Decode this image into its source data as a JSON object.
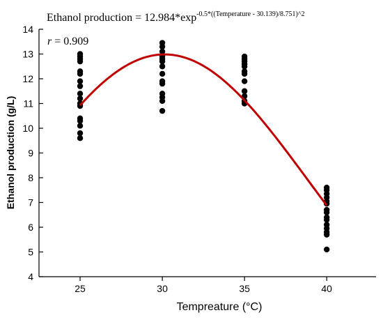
{
  "chart_data": {
    "type": "scatter",
    "equation": {
      "base": "Ethanol production = 12.984*exp",
      "exponent": "-0.5*((Temperature - 30.139)/8.751)^2"
    },
    "correlation": {
      "symbol": "r",
      "text": " = 0.909"
    },
    "xlabel": "Tempreature (°C)",
    "ylabel": "Ethanol production (g/L)",
    "xlim": [
      22.5,
      43
    ],
    "ylim": [
      4,
      14
    ],
    "xticks": [
      25,
      30,
      35,
      40
    ],
    "yticks": [
      4,
      5,
      6,
      7,
      8,
      9,
      10,
      11,
      12,
      13,
      14
    ],
    "fit_curve": {
      "a": 12.984,
      "x0": 30.139,
      "b": 8.751,
      "x_range": [
        25,
        40
      ],
      "color": "#c00000"
    },
    "points_color": "#000000",
    "points": [
      {
        "x": 25,
        "y": 13.0
      },
      {
        "x": 25,
        "y": 12.9
      },
      {
        "x": 25,
        "y": 12.8
      },
      {
        "x": 25,
        "y": 12.7
      },
      {
        "x": 25,
        "y": 12.3
      },
      {
        "x": 25,
        "y": 12.2
      },
      {
        "x": 25,
        "y": 11.9
      },
      {
        "x": 25,
        "y": 11.7
      },
      {
        "x": 25,
        "y": 11.4
      },
      {
        "x": 25,
        "y": 11.2
      },
      {
        "x": 25,
        "y": 11.0
      },
      {
        "x": 25,
        "y": 10.9
      },
      {
        "x": 25,
        "y": 10.4
      },
      {
        "x": 25,
        "y": 10.3
      },
      {
        "x": 25,
        "y": 10.1
      },
      {
        "x": 25,
        "y": 9.8
      },
      {
        "x": 25,
        "y": 9.6
      },
      {
        "x": 30,
        "y": 13.45
      },
      {
        "x": 30,
        "y": 13.3
      },
      {
        "x": 30,
        "y": 13.1
      },
      {
        "x": 30,
        "y": 12.9
      },
      {
        "x": 30,
        "y": 12.8
      },
      {
        "x": 30,
        "y": 12.7
      },
      {
        "x": 30,
        "y": 12.5
      },
      {
        "x": 30,
        "y": 12.2
      },
      {
        "x": 30,
        "y": 11.9
      },
      {
        "x": 30,
        "y": 11.8
      },
      {
        "x": 30,
        "y": 11.4
      },
      {
        "x": 30,
        "y": 11.25
      },
      {
        "x": 30,
        "y": 11.1
      },
      {
        "x": 30,
        "y": 10.7
      },
      {
        "x": 35,
        "y": 12.9
      },
      {
        "x": 35,
        "y": 12.8
      },
      {
        "x": 35,
        "y": 12.7
      },
      {
        "x": 35,
        "y": 12.6
      },
      {
        "x": 35,
        "y": 12.5
      },
      {
        "x": 35,
        "y": 12.3
      },
      {
        "x": 35,
        "y": 12.2
      },
      {
        "x": 35,
        "y": 11.9
      },
      {
        "x": 35,
        "y": 11.5
      },
      {
        "x": 35,
        "y": 11.3
      },
      {
        "x": 35,
        "y": 11.1
      },
      {
        "x": 35,
        "y": 11.0
      },
      {
        "x": 40,
        "y": 7.6
      },
      {
        "x": 40,
        "y": 7.5
      },
      {
        "x": 40,
        "y": 7.35
      },
      {
        "x": 40,
        "y": 7.2
      },
      {
        "x": 40,
        "y": 7.05
      },
      {
        "x": 40,
        "y": 6.95
      },
      {
        "x": 40,
        "y": 6.7
      },
      {
        "x": 40,
        "y": 6.6
      },
      {
        "x": 40,
        "y": 6.4
      },
      {
        "x": 40,
        "y": 6.3
      },
      {
        "x": 40,
        "y": 6.1
      },
      {
        "x": 40,
        "y": 5.95
      },
      {
        "x": 40,
        "y": 5.8
      },
      {
        "x": 40,
        "y": 5.7
      },
      {
        "x": 40,
        "y": 5.1
      }
    ]
  }
}
